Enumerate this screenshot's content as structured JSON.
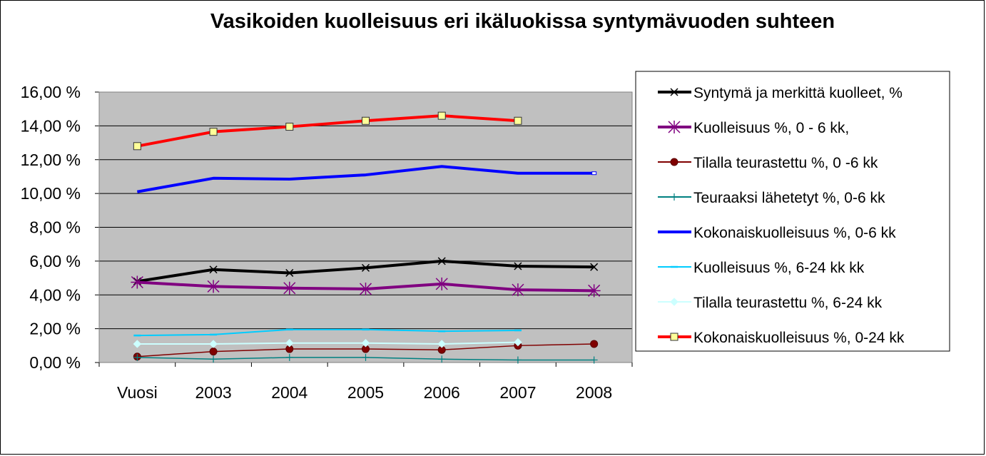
{
  "chart_data": {
    "type": "line",
    "title": "Vasikoiden kuolleisuus eri ikäluokissa syntymävuoden suhteen",
    "categories": [
      "Vuosi",
      "2003",
      "2004",
      "2005",
      "2006",
      "2007",
      "2008"
    ],
    "y_ticks": [
      "0,00 %",
      "2,00 %",
      "4,00 %",
      "6,00 %",
      "8,00 %",
      "10,00 %",
      "12,00 %",
      "14,00 %",
      "16,00 %"
    ],
    "ylim": [
      0,
      16
    ],
    "grid": true,
    "legend_position": "right",
    "plot_background": "#c0c0c0",
    "series": [
      {
        "name": "Syntymä ja merkittä kuolleet, %",
        "color": "#000000",
        "width": 4,
        "marker": "x",
        "values": [
          4.8,
          5.5,
          5.3,
          5.6,
          6.0,
          5.7,
          5.65
        ]
      },
      {
        "name": "Kuolleisuus %, 0 - 6 kk,",
        "color": "#800080",
        "width": 4,
        "marker": "star",
        "values": [
          4.75,
          4.5,
          4.4,
          4.35,
          4.65,
          4.3,
          4.25
        ]
      },
      {
        "name": "Tilalla teurastettu %, 0 -6 kk",
        "color": "#800000",
        "width": 1.5,
        "marker": "circle",
        "values": [
          0.35,
          0.65,
          0.8,
          0.8,
          0.75,
          1.0,
          1.1
        ]
      },
      {
        "name": "Teuraaksi lähetetyt %, 0-6 kk",
        "color": "#008080",
        "width": 1.5,
        "marker": "plus",
        "values": [
          0.3,
          0.2,
          0.3,
          0.3,
          0.2,
          0.15,
          0.15
        ]
      },
      {
        "name": "Kokonaiskuolleisuus %, 0-6 kk",
        "color": "#0000ff",
        "width": 4,
        "marker": "none",
        "values": [
          10.1,
          10.9,
          10.85,
          11.1,
          11.6,
          11.2,
          11.2
        ]
      },
      {
        "name": "Kuolleisuus %, 6-24 kk kk",
        "color": "#00ccff",
        "width": 2,
        "marker": "dash",
        "values": [
          1.6,
          1.65,
          1.95,
          1.95,
          1.85,
          1.9,
          null
        ]
      },
      {
        "name": "Tilalla teurastettu %, 6-24 kk",
        "color": "#ccffff",
        "width": 2,
        "marker": "diamond",
        "values": [
          1.1,
          1.1,
          1.15,
          1.15,
          1.1,
          1.2,
          null
        ]
      },
      {
        "name": "Kokonaiskuolleisuus %, 0-24 kk",
        "color": "#ff0000",
        "width": 4,
        "marker": "square",
        "values": [
          12.8,
          13.65,
          13.95,
          14.3,
          14.6,
          14.3,
          null
        ]
      }
    ]
  }
}
